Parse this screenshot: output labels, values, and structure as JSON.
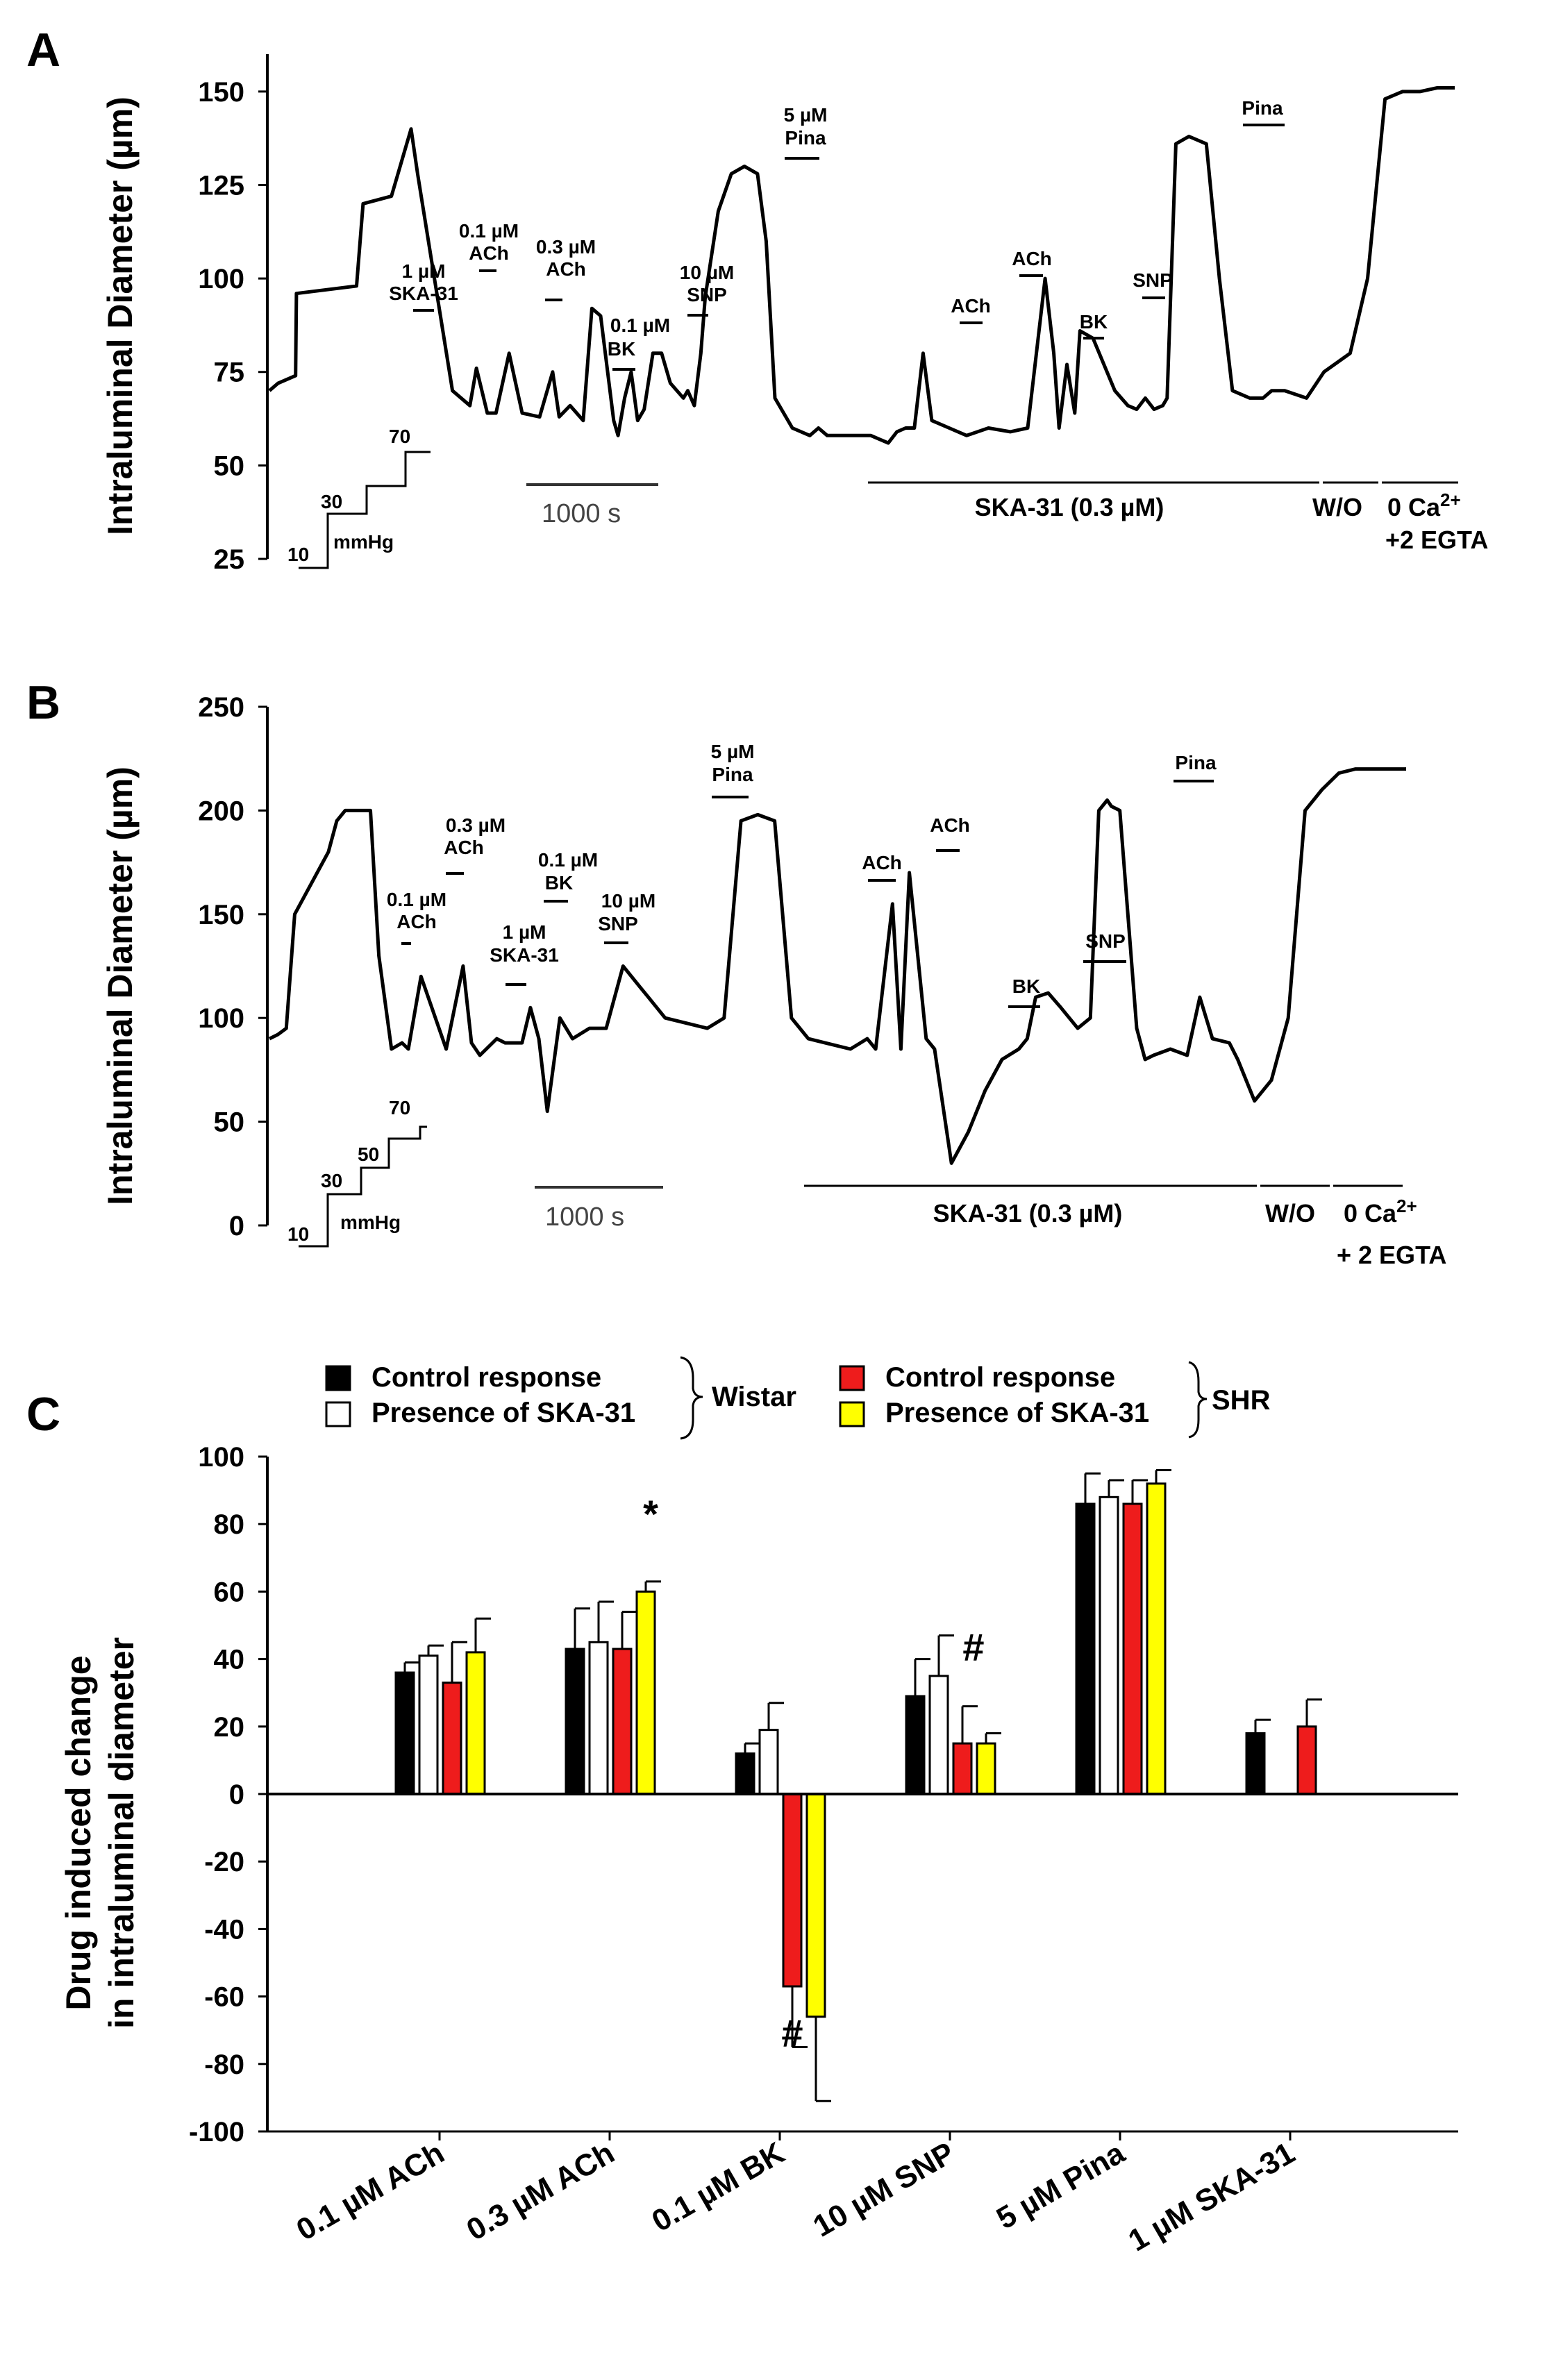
{
  "panels": {
    "A": {
      "letter": "A",
      "ylabel": "Intraluminal Diameter (µm)",
      "yticks": [
        "150",
        "125",
        "100",
        "75",
        "50",
        "25"
      ],
      "pressure": {
        "steps": [
          "10",
          "30",
          "70"
        ],
        "unit": "mmHg"
      },
      "scalebar": "1000 s",
      "annotations": {
        "ska1": [
          "1 µM",
          "SKA-31"
        ],
        "ach01": [
          "0.1 µM",
          "ACh"
        ],
        "ach03": [
          "0.3 µM",
          "ACh"
        ],
        "bk01": [
          "0.1 µM",
          "BK"
        ],
        "snp10": [
          "10 µM",
          "SNP"
        ],
        "pina5": [
          "5 µM",
          "Pina"
        ],
        "ach_b": [
          "ACh"
        ],
        "ach_c": [
          "ACh"
        ],
        "bk_b": [
          "BK"
        ],
        "snp_b": [
          "SNP"
        ],
        "pina_b": [
          "Pina"
        ]
      },
      "treatments": {
        "ska": "SKA-31 (0.3 µM)",
        "wo": "W/O",
        "ca_line1": "0 Ca",
        "ca_sup": "2+",
        "ca_line2": "+2 EGTA"
      }
    },
    "B": {
      "letter": "B",
      "ylabel": "Intraluminal Diameter (µm)",
      "yticks": [
        "250",
        "200",
        "150",
        "100",
        "50",
        "0"
      ],
      "pressure": {
        "steps": [
          "10",
          "30",
          "50",
          "70"
        ],
        "unit": "mmHg"
      },
      "scalebar": "1000 s",
      "annotations": {
        "ach01": [
          "0.1 µM",
          "ACh"
        ],
        "ach03": [
          "0.3 µM",
          "ACh"
        ],
        "ska1": [
          "1 µM",
          "SKA-31"
        ],
        "bk01": [
          "0.1 µM",
          "BK"
        ],
        "snp10": [
          "10 µM",
          "SNP"
        ],
        "pina5": [
          "5 µM",
          "Pina"
        ],
        "ach_b": [
          "ACh"
        ],
        "ach_c": [
          "ACh"
        ],
        "bk_b": [
          "BK"
        ],
        "snp_b": [
          "SNP"
        ],
        "pina_b": [
          "Pina"
        ]
      },
      "treatments": {
        "ska": "SKA-31 (0.3 µM)",
        "wo": "W/O",
        "ca_line1": "0 Ca",
        "ca_sup": "2+",
        "ca_line2": "+ 2 EGTA"
      }
    },
    "C": {
      "letter": "C",
      "legend": {
        "wistar_group": "Wistar",
        "shr_group": "SHR",
        "items": [
          {
            "label": "Control response",
            "color": "#000000"
          },
          {
            "label": "Presence of SKA-31",
            "color": "#ffffff"
          },
          {
            "label": "Control response",
            "color": "#ee1c1c"
          },
          {
            "label": "Presence of SKA-31",
            "color": "#ffff00"
          }
        ]
      },
      "significance": {
        "star": "*",
        "hash_snp": "#",
        "hash_bk": "#"
      }
    }
  },
  "chart_data": [
    {
      "type": "line",
      "title": "A",
      "ylabel": "Intraluminal Diameter (µm)",
      "ylim": [
        25,
        160
      ],
      "x": [
        0,
        20,
        60,
        62,
        200,
        215,
        280,
        325,
        340,
        420,
        460,
        475,
        500,
        520,
        550,
        580,
        620,
        650,
        665,
        690,
        720,
        740,
        760,
        790,
        800,
        815,
        830,
        845,
        860,
        880,
        900,
        920,
        950,
        960,
        975,
        990,
        1000,
        1030,
        1060,
        1090,
        1120,
        1140,
        1160,
        1200,
        1240,
        1260,
        1280,
        1300,
        1330,
        1380,
        1420,
        1440,
        1460,
        1480,
        1500,
        1520,
        1560,
        1600,
        1650,
        1700,
        1740,
        1780,
        1800,
        1812,
        1830,
        1848,
        1860,
        1890,
        1940,
        1970,
        1990,
        2010,
        2030,
        2050,
        2060,
        2080,
        2110,
        2150,
        2180,
        2210,
        2250,
        2280,
        2300,
        2330,
        2380,
        2420,
        2480,
        2520,
        2560,
        2600,
        2640,
        2680,
        2720
      ],
      "values": [
        70,
        72,
        74,
        96,
        98,
        120,
        122,
        140,
        128,
        70,
        66,
        76,
        64,
        64,
        80,
        64,
        63,
        75,
        63,
        66,
        62,
        92,
        90,
        62,
        58,
        68,
        75,
        62,
        65,
        80,
        80,
        72,
        68,
        70,
        66,
        80,
        95,
        118,
        128,
        130,
        128,
        110,
        68,
        60,
        58,
        60,
        58,
        58,
        58,
        58,
        56,
        59,
        60,
        60,
        80,
        62,
        60,
        58,
        60,
        59,
        60,
        100,
        80,
        60,
        77,
        64,
        86,
        84,
        70,
        66,
        65,
        68,
        65,
        66,
        68,
        136,
        138,
        136,
        100,
        70,
        68,
        68,
        70,
        70,
        68,
        75,
        80,
        100,
        148,
        150,
        150,
        151,
        151
      ],
      "series": [
        {
          "name": "diameter trace",
          "values": "see values"
        }
      ]
    },
    {
      "type": "line",
      "title": "B",
      "ylabel": "Intraluminal Diameter (µm)",
      "ylim": [
        0,
        250
      ],
      "x": [
        0,
        20,
        40,
        60,
        140,
        160,
        180,
        240,
        260,
        290,
        315,
        330,
        360,
        420,
        460,
        480,
        500,
        540,
        560,
        600,
        620,
        640,
        660,
        690,
        720,
        760,
        800,
        840,
        860,
        880,
        900,
        940,
        1040,
        1080,
        1120,
        1160,
        1200,
        1240,
        1280,
        1320,
        1380,
        1420,
        1440,
        1480,
        1500,
        1520,
        1560,
        1580,
        1620,
        1660,
        1700,
        1740,
        1780,
        1800,
        1820,
        1850,
        1880,
        1920,
        1950,
        1970,
        1990,
        2000,
        2020,
        2060,
        2080,
        2100,
        2140,
        2180,
        2210,
        2240,
        2280,
        2300,
        2340,
        2380,
        2420,
        2460,
        2500,
        2540,
        2580,
        2620,
        2700
      ],
      "values": [
        90,
        92,
        95,
        150,
        180,
        195,
        200,
        200,
        130,
        85,
        88,
        85,
        120,
        85,
        125,
        88,
        82,
        90,
        88,
        88,
        105,
        90,
        55,
        100,
        90,
        95,
        95,
        125,
        120,
        115,
        110,
        100,
        95,
        100,
        195,
        198,
        195,
        100,
        90,
        88,
        85,
        90,
        85,
        155,
        85,
        170,
        90,
        85,
        30,
        45,
        65,
        80,
        85,
        90,
        110,
        112,
        105,
        95,
        100,
        200,
        205,
        202,
        200,
        95,
        80,
        82,
        85,
        82,
        110,
        90,
        88,
        80,
        60,
        70,
        100,
        200,
        210,
        218,
        220,
        220,
        220
      ],
      "series": [
        {
          "name": "diameter trace",
          "values": "see values"
        }
      ]
    },
    {
      "type": "bar",
      "title": "C",
      "ylabel": "Drug induced change in intraluminal diameter",
      "ylim": [
        -100,
        100
      ],
      "yticks": [
        "100",
        "80",
        "60",
        "40",
        "20",
        "0",
        "-20",
        "-40",
        "-60",
        "-80",
        "-100"
      ],
      "categories": [
        "0.1 µM ACh",
        "0.3 µM ACh",
        "0.1 µM BK",
        "10 µM SNP",
        "5 µM Pina",
        "1 µM SKA-31"
      ],
      "series": [
        {
          "name": "Wistar Control response",
          "color": "#000000",
          "values": [
            36,
            43,
            12,
            29,
            86,
            18
          ],
          "errors": [
            3,
            12,
            3,
            11,
            9,
            4
          ]
        },
        {
          "name": "Wistar Presence of SKA-31",
          "color": "#ffffff",
          "values": [
            41,
            45,
            19,
            35,
            88,
            null
          ],
          "errors": [
            3,
            12,
            8,
            12,
            5,
            null
          ]
        },
        {
          "name": "SHR Control response",
          "color": "#ee1c1c",
          "values": [
            33,
            43,
            -57,
            15,
            86,
            20
          ],
          "errors": [
            12,
            11,
            18,
            11,
            7,
            8
          ]
        },
        {
          "name": "SHR Presence of SKA-31",
          "color": "#ffff00",
          "values": [
            42,
            60,
            -66,
            15,
            92,
            null
          ],
          "errors": [
            10,
            3,
            25,
            3,
            4,
            null
          ]
        }
      ]
    }
  ]
}
